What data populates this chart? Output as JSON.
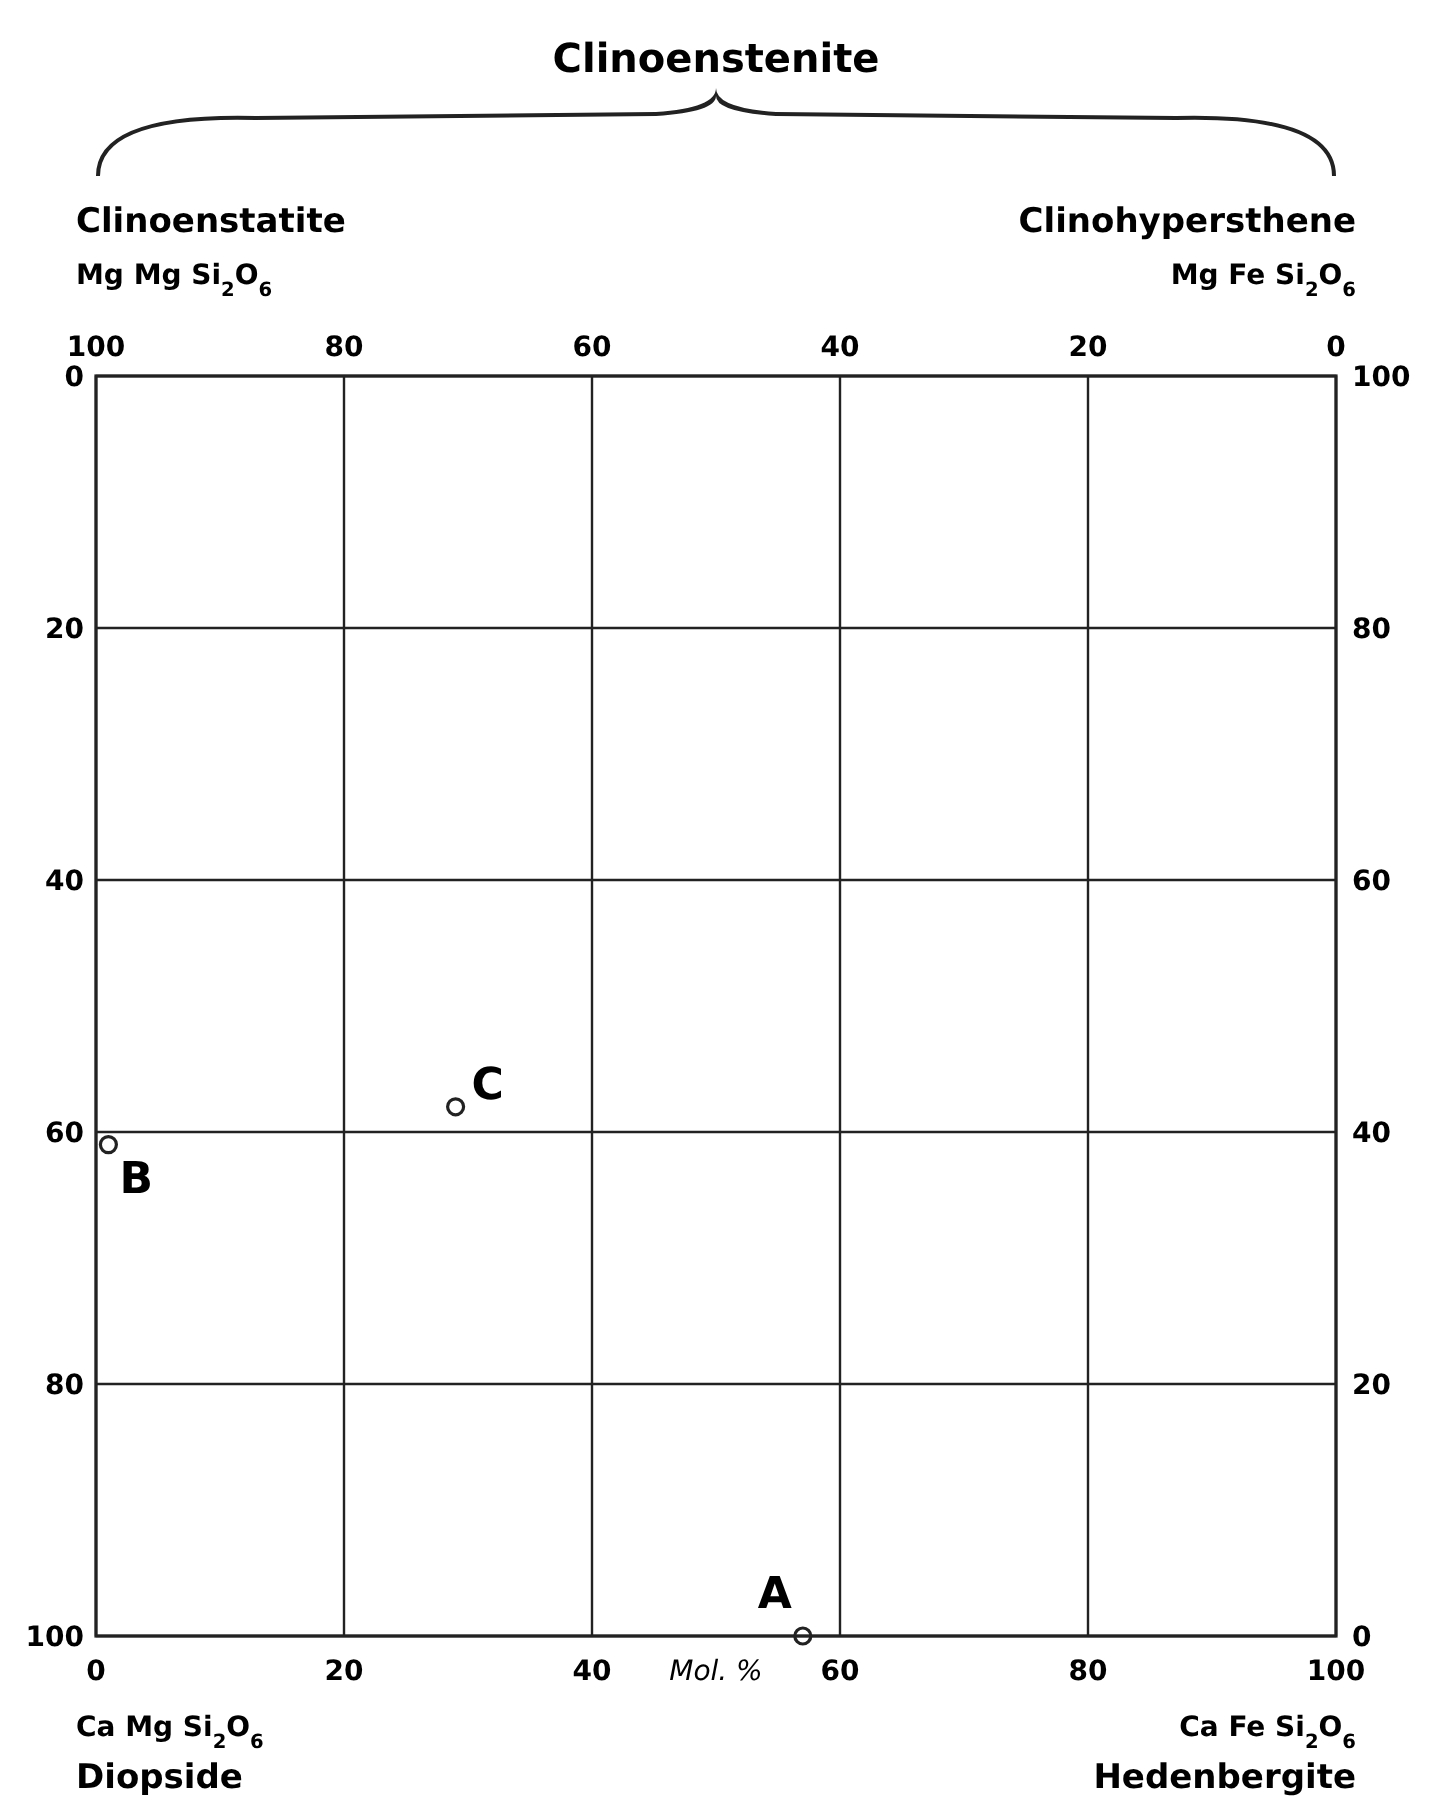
{
  "chart_data": {
    "type": "scatter",
    "title": "Clinoenstenite",
    "xlabel": "Mol. %",
    "xlim": [
      0,
      100
    ],
    "xticks": [
      0,
      20,
      40,
      60,
      80,
      100
    ],
    "x2lim": [
      100,
      0
    ],
    "x2ticks": [
      100,
      80,
      60,
      40,
      20,
      0
    ],
    "ylim": [
      100,
      0
    ],
    "yticks": [
      0,
      20,
      40,
      60,
      80,
      100
    ],
    "y2lim": [
      0,
      100
    ],
    "y2ticks": [
      0,
      20,
      40,
      60,
      80,
      100
    ],
    "grid": true,
    "marker": "circle",
    "series": [
      {
        "color": "#222222",
        "x": [
          57,
          1,
          29
        ],
        "values": [
          100,
          61,
          58
        ]
      }
    ],
    "annotations": [
      {
        "text": "A",
        "x": 57,
        "y": 100
      },
      {
        "text": "B",
        "x": 1,
        "y": 61
      },
      {
        "text": "C",
        "x": 29,
        "y": 58
      },
      "Clinoenstatite",
      "Mg Mg Si$_{2}$O$_{6}$",
      "Clinohypersthene",
      "Mg Fe Si$_{2}$O$_{6}$",
      "Ca Mg Si$_{2}$O$_{6}$",
      "Diopside",
      "Ca Fe Si$_{2}$O$_{6}$",
      "Hedenbergite"
    ]
  }
}
